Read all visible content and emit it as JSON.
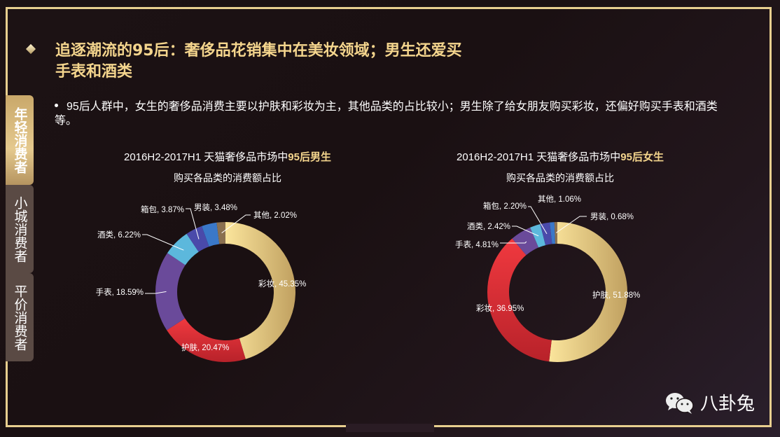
{
  "header": {
    "title_line1": "追逐潮流的95后：奢侈品花销集中在美妆领域；男生还爱买",
    "title_line2": "手表和酒类",
    "bullet": "95后人群中，女生的奢侈品消费主要以护肤和彩妆为主，其他品类的占比较小；男生除了给女朋友购买彩妆，还偏好购买手表和酒类等。"
  },
  "side_tabs": [
    {
      "label": "年轻消费者",
      "active": true
    },
    {
      "label": "小城消费者",
      "active": false
    },
    {
      "label": "平价消费者",
      "active": false
    }
  ],
  "charts_text": {
    "male": {
      "title_prefix": "2016H2-2017H1 天猫奢侈品市场中",
      "title_highlight": "95后男生",
      "subtitle": "购买各品类的消费额占比"
    },
    "female": {
      "title_prefix": "2016H2-2017H1 天猫奢侈品市场中",
      "title_highlight": "95后女生",
      "subtitle": "购买各品类的消费额占比"
    }
  },
  "chart_data": [
    {
      "type": "pie",
      "title": "2016H2-2017H1 天猫奢侈品市场中95后男生 购买各品类的消费额占比",
      "donut": true,
      "categories": [
        "彩妆",
        "护肤",
        "手表",
        "酒类",
        "箱包",
        "男装",
        "其他"
      ],
      "values": [
        45.35,
        20.47,
        18.59,
        6.22,
        3.87,
        3.48,
        2.02
      ],
      "labels": [
        "彩妆, 45.35%",
        "护肤, 20.47%",
        "手表, 18.59%",
        "酒类, 6.22%",
        "箱包, 3.87%",
        "男装, 3.48%",
        "其他, 2.02%"
      ],
      "colors": [
        "#e8c878",
        "#e03a3e",
        "#6a4a9a",
        "#5cb8dc",
        "#4a4aaa",
        "#3a78c8",
        "#8a7050"
      ]
    },
    {
      "type": "pie",
      "title": "2016H2-2017H1 天猫奢侈品市场中95后女生 购买各品类的消费额占比",
      "donut": true,
      "categories": [
        "护肤",
        "彩妆",
        "手表",
        "酒类",
        "箱包",
        "其他",
        "男装"
      ],
      "values": [
        51.88,
        36.95,
        4.81,
        2.42,
        2.2,
        1.06,
        0.68
      ],
      "labels": [
        "护肤, 51.88%",
        "彩妆, 36.95%",
        "手表, 4.81%",
        "酒类, 2.42%",
        "箱包, 2.20%",
        "其他, 1.06%",
        "男装, 0.68%"
      ],
      "colors": [
        "#e8c878",
        "#e03a3e",
        "#6a4a9a",
        "#5cb8dc",
        "#4a4aaa",
        "#3a78c8",
        "#8a7050"
      ]
    }
  ],
  "brand": {
    "name": "八卦兔",
    "icon": "wechat-icon"
  }
}
